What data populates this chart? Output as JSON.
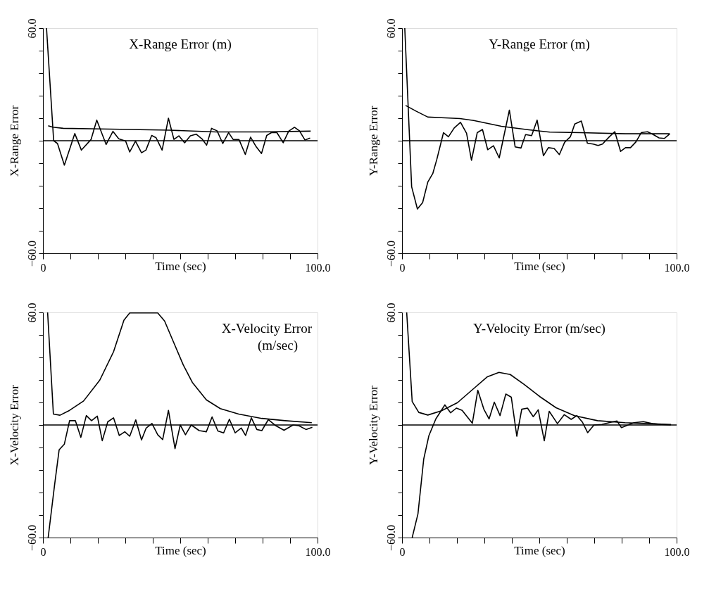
{
  "chart_data": [
    {
      "type": "line",
      "title": "X-Range Error (m)",
      "xlabel": "Time (sec)",
      "ylabel": "X-Range Error",
      "xlim": [
        0,
        100
      ],
      "ylim": [
        -60,
        60
      ],
      "xticks": [
        {
          "value": 0,
          "label": "0"
        },
        {
          "value": 10,
          "label": null
        },
        {
          "value": 20,
          "label": null
        },
        {
          "value": 30,
          "label": null
        },
        {
          "value": 40,
          "label": null
        },
        {
          "value": 50,
          "label": null
        },
        {
          "value": 60,
          "label": null
        },
        {
          "value": 70,
          "label": null
        },
        {
          "value": 80,
          "label": null
        },
        {
          "value": 90,
          "label": null
        },
        {
          "value": 100,
          "label": "100.0"
        }
      ],
      "yticks": [
        {
          "value": -60,
          "label": "−60.0"
        },
        {
          "value": -48,
          "label": null
        },
        {
          "value": -36,
          "label": null
        },
        {
          "value": -24,
          "label": null
        },
        {
          "value": -12,
          "label": null
        },
        {
          "value": 0,
          "label": null
        },
        {
          "value": 12,
          "label": null
        },
        {
          "value": 24,
          "label": null
        },
        {
          "value": 36,
          "label": null
        },
        {
          "value": 48,
          "label": null
        },
        {
          "value": 60,
          "label": "60.0"
        }
      ],
      "ref_lines": [
        {
          "axis": "y",
          "value": 0,
          "color": "#000000"
        }
      ],
      "series": [
        {
          "color": "#000000",
          "x": [
            1.3,
            3.9,
            5.3,
            7.8,
            11.6,
            14,
            17.5,
            19.6,
            23,
            25.5,
            27.6,
            30.1,
            31.6,
            33.7,
            35.9,
            37.5,
            39.6,
            41.2,
            43.4,
            45.7,
            47.7,
            49.5,
            51.6,
            53.7,
            55.8,
            57.9,
            59.6,
            61.4,
            63.4,
            65.5,
            67.6,
            69.3,
            71.4,
            73.7,
            75.6,
            77.7,
            79.6,
            81.5,
            83.2,
            85.2,
            87.5,
            89.5,
            91.6,
            93.4,
            95.4,
            97.3
          ],
          "values": [
            60,
            0,
            -1.5,
            -13,
            3.8,
            -5,
            0.6,
            11,
            -2,
            5,
            1,
            -0.2,
            -6,
            -0.2,
            -6.4,
            -5,
            2.8,
            1.6,
            -5,
            12,
            0.7,
            2.6,
            -1.1,
            2.6,
            3.5,
            1,
            -2.4,
            6.6,
            5.3,
            -1.5,
            4.3,
            0.6,
            0.6,
            -7.3,
            1.9,
            -3.3,
            -6.8,
            2.8,
            4.3,
            4.3,
            -1.1,
            5.1,
            7.2,
            5.3,
            0.4,
            1.4
          ]
        },
        {
          "color": "#000000",
          "x": [
            1.9,
            3.6,
            7.4,
            20.9,
            46.1,
            63,
            79.8,
            97.5
          ],
          "values": [
            8,
            7.2,
            6.6,
            6.3,
            5.6,
            4.7,
            4.7,
            5.1
          ]
        }
      ]
    },
    {
      "type": "line",
      "title": "Y-Range Error (m)",
      "xlabel": "Time (sec)",
      "ylabel": "Y-Range Error",
      "xlim": [
        0,
        100
      ],
      "ylim": [
        -60,
        60
      ],
      "xticks": [
        {
          "value": 0,
          "label": "0"
        },
        {
          "value": 10,
          "label": null
        },
        {
          "value": 20,
          "label": null
        },
        {
          "value": 30,
          "label": null
        },
        {
          "value": 40,
          "label": null
        },
        {
          "value": 50,
          "label": null
        },
        {
          "value": 60,
          "label": null
        },
        {
          "value": 70,
          "label": null
        },
        {
          "value": 80,
          "label": null
        },
        {
          "value": 90,
          "label": null
        },
        {
          "value": 100,
          "label": "100.0"
        }
      ],
      "yticks": [
        {
          "value": -60,
          "label": "−60.0"
        },
        {
          "value": -48,
          "label": null
        },
        {
          "value": -36,
          "label": null
        },
        {
          "value": -24,
          "label": null
        },
        {
          "value": -12,
          "label": null
        },
        {
          "value": 0,
          "label": null
        },
        {
          "value": 12,
          "label": null
        },
        {
          "value": 24,
          "label": null
        },
        {
          "value": 36,
          "label": null
        },
        {
          "value": 48,
          "label": null
        },
        {
          "value": 60,
          "label": "60.0"
        }
      ],
      "ref_lines": [
        {
          "axis": "y",
          "value": 0,
          "color": "#000000"
        }
      ],
      "series": [
        {
          "color": "#000000",
          "x": [
            1,
            3.5,
            5.6,
            7.5,
            9.4,
            11.2,
            12.7,
            15.1,
            16.9,
            19,
            21.3,
            23.5,
            25.3,
            27.4,
            29.3,
            31.2,
            33.3,
            35.4,
            39.1,
            41.2,
            43.3,
            45,
            47.2,
            49.2,
            51.5,
            53.3,
            55.4,
            57.3,
            59.2,
            61.3,
            62.9,
            65.3,
            67.5,
            69.6,
            71.4,
            73,
            75.5,
            77.5,
            79.6,
            81.4,
            83.2,
            85.2,
            87.1,
            89.4,
            91.5,
            93.6,
            95.5,
            97.5
          ],
          "values": [
            60,
            -24.5,
            -36.4,
            -33,
            -22,
            -17.5,
            -9.8,
            4.3,
            2.1,
            6.8,
            9.8,
            4,
            -10.4,
            4.3,
            6,
            -4.8,
            -2.7,
            -9.2,
            16.3,
            -3.3,
            -3.9,
            3.3,
            2.7,
            11,
            -8,
            -3.7,
            -4.1,
            -7.4,
            -0.9,
            2.1,
            8.9,
            10.5,
            -1.3,
            -1.8,
            -2.5,
            -1.8,
            2.1,
            4.8,
            -5.7,
            -3.7,
            -3.7,
            -0.6,
            4.3,
            4.8,
            3.3,
            1.5,
            1.2,
            3.6
          ]
        },
        {
          "color": "#000000",
          "x": [
            1.3,
            5.2,
            9.4,
            14.4,
            21.1,
            26.1,
            36.2,
            46.2,
            53.8,
            64.7,
            81.4,
            97.5
          ],
          "values": [
            18.8,
            15.7,
            12.6,
            12.3,
            11.8,
            10.8,
            7.7,
            5.8,
            4.6,
            4.3,
            3.7,
            3.7
          ]
        }
      ]
    },
    {
      "type": "line",
      "title": "X-Velocity Error\n(m/sec)",
      "xlabel": "Time (sec)",
      "ylabel": "X-Velocity Error",
      "xlim": [
        0,
        100
      ],
      "ylim": [
        -60,
        60
      ],
      "xticks": [
        {
          "value": 0,
          "label": "0"
        },
        {
          "value": 10,
          "label": null
        },
        {
          "value": 20,
          "label": null
        },
        {
          "value": 30,
          "label": null
        },
        {
          "value": 40,
          "label": null
        },
        {
          "value": 50,
          "label": null
        },
        {
          "value": 60,
          "label": null
        },
        {
          "value": 70,
          "label": null
        },
        {
          "value": 80,
          "label": null
        },
        {
          "value": 90,
          "label": null
        },
        {
          "value": 100,
          "label": "100.0"
        }
      ],
      "yticks": [
        {
          "value": -60,
          "label": "−60.0"
        },
        {
          "value": -48,
          "label": null
        },
        {
          "value": -36,
          "label": null
        },
        {
          "value": -24,
          "label": null
        },
        {
          "value": -12,
          "label": null
        },
        {
          "value": 0,
          "label": null
        },
        {
          "value": 12,
          "label": null
        },
        {
          "value": 24,
          "label": null
        },
        {
          "value": 36,
          "label": null
        },
        {
          "value": 48,
          "label": null
        },
        {
          "value": 60,
          "label": "60.0"
        }
      ],
      "ref_lines": [
        {
          "axis": "y",
          "value": 0,
          "color": "#000000"
        }
      ],
      "series": [
        {
          "color": "#000000",
          "x": [
            1.7,
            3.8,
            6.2,
            9.7,
            14.8,
            20.7,
            25.7,
            29.5,
            31.6,
            41.8,
            44.3,
            47.7,
            51.1,
            54.4,
            59.5,
            64.6,
            71.3,
            79.7,
            88.2,
            97.9
          ],
          "values": [
            60,
            5.8,
            5.2,
            7.8,
            12.8,
            23.9,
            39,
            55.9,
            59.7,
            59.7,
            55.4,
            43.7,
            32,
            22.7,
            13.4,
            8.7,
            5.8,
            3.5,
            2.3,
            1.2
          ]
        },
        {
          "color": "#000000",
          "x": [
            1.9,
            4.2,
            5.9,
            7.8,
            9.7,
            11.8,
            13.8,
            15.8,
            17.7,
            19.8,
            21.6,
            23.6,
            25.7,
            27.8,
            29.8,
            31.6,
            33.8,
            35.9,
            37.6,
            39.7,
            41.8,
            43.6,
            45.7,
            48.1,
            50,
            51.9,
            54,
            56.9,
            59.5,
            61.6,
            63.7,
            65.8,
            67.9,
            70,
            72.2,
            73.8,
            75.9,
            77.9,
            79.7,
            82.1,
            84.8,
            87.8,
            91.1,
            93.2,
            95.8,
            98.1
          ],
          "values": [
            -60,
            -32.4,
            -13.2,
            -10.2,
            2.3,
            2.3,
            -6.6,
            5,
            2.3,
            4.7,
            -8.4,
            1.7,
            3.8,
            -5.6,
            -3.6,
            -6,
            2.7,
            -8,
            -1.6,
            0.8,
            -5.2,
            -7.8,
            7.8,
            -12.6,
            0,
            -5.2,
            0,
            -3,
            -3.6,
            4.3,
            -3.2,
            -4.2,
            3.1,
            -4.2,
            -1.6,
            -5.6,
            3.8,
            -2.4,
            -3,
            2.9,
            -0.4,
            -2.8,
            0,
            -0.4,
            -2.4,
            -1.2
          ]
        }
      ]
    },
    {
      "type": "line",
      "title": "Y-Velocity Error (m/sec)",
      "xlabel": "Time (sec)",
      "ylabel": "Y-Velocity Error",
      "xlim": [
        0,
        100
      ],
      "ylim": [
        -60,
        60
      ],
      "xticks": [
        {
          "value": 0,
          "label": "0"
        },
        {
          "value": 10,
          "label": null
        },
        {
          "value": 20,
          "label": null
        },
        {
          "value": 30,
          "label": null
        },
        {
          "value": 40,
          "label": null
        },
        {
          "value": 50,
          "label": null
        },
        {
          "value": 60,
          "label": null
        },
        {
          "value": 70,
          "label": null
        },
        {
          "value": 80,
          "label": null
        },
        {
          "value": 90,
          "label": null
        },
        {
          "value": 100,
          "label": "100.0"
        }
      ],
      "yticks": [
        {
          "value": -60,
          "label": "−60.0"
        },
        {
          "value": -48,
          "label": null
        },
        {
          "value": -36,
          "label": null
        },
        {
          "value": -24,
          "label": null
        },
        {
          "value": -12,
          "label": null
        },
        {
          "value": 0,
          "label": null
        },
        {
          "value": 12,
          "label": null
        },
        {
          "value": 24,
          "label": null
        },
        {
          "value": 36,
          "label": null
        },
        {
          "value": 48,
          "label": null
        },
        {
          "value": 60,
          "label": "60.0"
        }
      ],
      "ref_lines": [
        {
          "axis": "y",
          "value": 0,
          "color": "#000000"
        }
      ],
      "series": [
        {
          "color": "#000000",
          "x": [
            1.7,
            3.7,
            6.1,
            9.4,
            14.4,
            20.2,
            26.1,
            31.1,
            35.3,
            39.4,
            44.4,
            50.3,
            56.1,
            62.8,
            71.2,
            81.2,
            89.6,
            98
          ],
          "values": [
            60,
            12.5,
            6.7,
            5.3,
            7.6,
            11.9,
            19.4,
            25.7,
            28,
            26.9,
            21.7,
            15,
            9.2,
            5,
            2.3,
            1.2,
            0.7,
            0.3
          ]
        },
        {
          "color": "#000000",
          "x": [
            3.7,
            5.8,
            7.9,
            9.8,
            12.3,
            15.6,
            17.7,
            19.8,
            21.9,
            25.6,
            27.6,
            29.8,
            31.7,
            33.6,
            35.7,
            37.8,
            39.8,
            41.8,
            43.6,
            45.7,
            47.8,
            49.6,
            51.8,
            53.6,
            56.6,
            59.1,
            61.6,
            63.7,
            65.7,
            67.6,
            69.9,
            72.8,
            76.2,
            78.3,
            79.9,
            82,
            84.5,
            87.9,
            91.2,
            94.6,
            97.9
          ],
          "values": [
            -60,
            -47.4,
            -18.2,
            -5.6,
            3.2,
            10.7,
            6.5,
            9,
            7.8,
            0.9,
            18.5,
            8.4,
            3.2,
            12.2,
            5,
            16.5,
            14.8,
            -6,
            8.4,
            9,
            4.4,
            8.1,
            -8.4,
            7.3,
            0.7,
            5.5,
            3,
            5,
            1.5,
            -4.1,
            0,
            0.3,
            1.5,
            2.1,
            -1.4,
            -0.2,
            1.2,
            1.8,
            0.7,
            0.3,
            0
          ]
        }
      ]
    }
  ]
}
